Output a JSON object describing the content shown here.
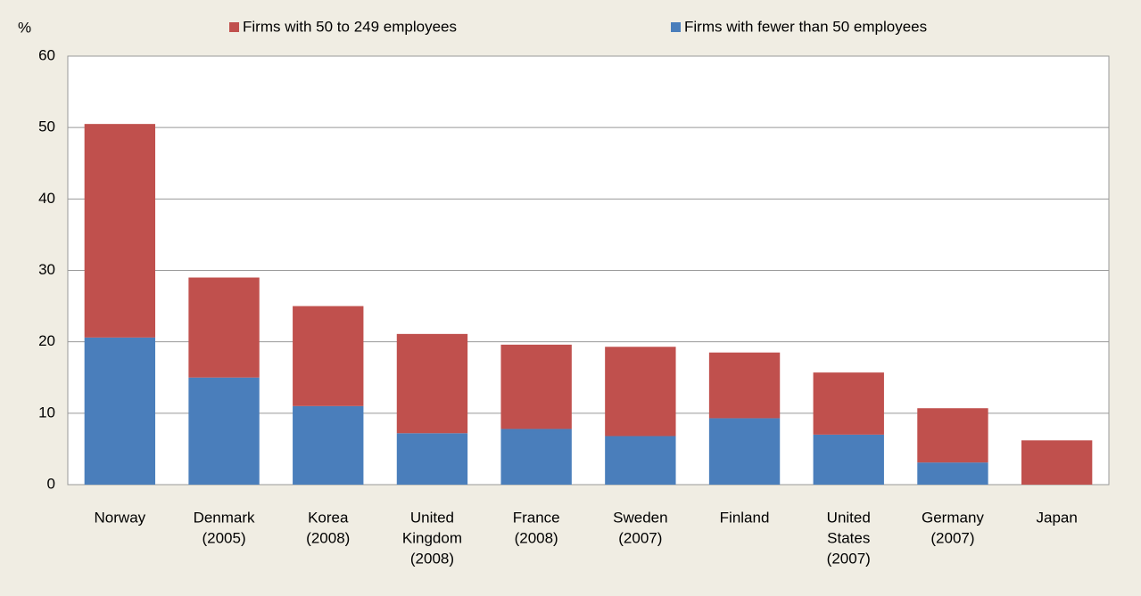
{
  "chart_data": {
    "type": "stacked_bar",
    "y_label": "%",
    "categories": [
      [
        "Norway"
      ],
      [
        "Denmark",
        "(2005)"
      ],
      [
        "Korea",
        "(2008)"
      ],
      [
        "United",
        "Kingdom",
        "(2008)"
      ],
      [
        "France",
        "(2008)"
      ],
      [
        "Sweden",
        "(2007)"
      ],
      [
        "Finland"
      ],
      [
        "United",
        "States",
        "(2007)"
      ],
      [
        "Germany",
        "(2007)"
      ],
      [
        "Japan"
      ]
    ],
    "series": [
      {
        "name": "Firms with fewer than 50 employees",
        "color": "#4a7ebb",
        "values": [
          20.6,
          15,
          11,
          7.2,
          7.8,
          6.8,
          9.3,
          7.0,
          3.1,
          null
        ]
      },
      {
        "name": "Firms with 50 to 249 employees",
        "color": "#c0504d",
        "values": [
          29.9,
          14,
          14,
          13.9,
          11.8,
          12.5,
          9.2,
          8.7,
          7.6,
          6.2
        ]
      }
    ],
    "ylim": [
      0,
      60
    ],
    "yticks": [
      0,
      10,
      20,
      30,
      40,
      50,
      60
    ],
    "grid": true
  }
}
